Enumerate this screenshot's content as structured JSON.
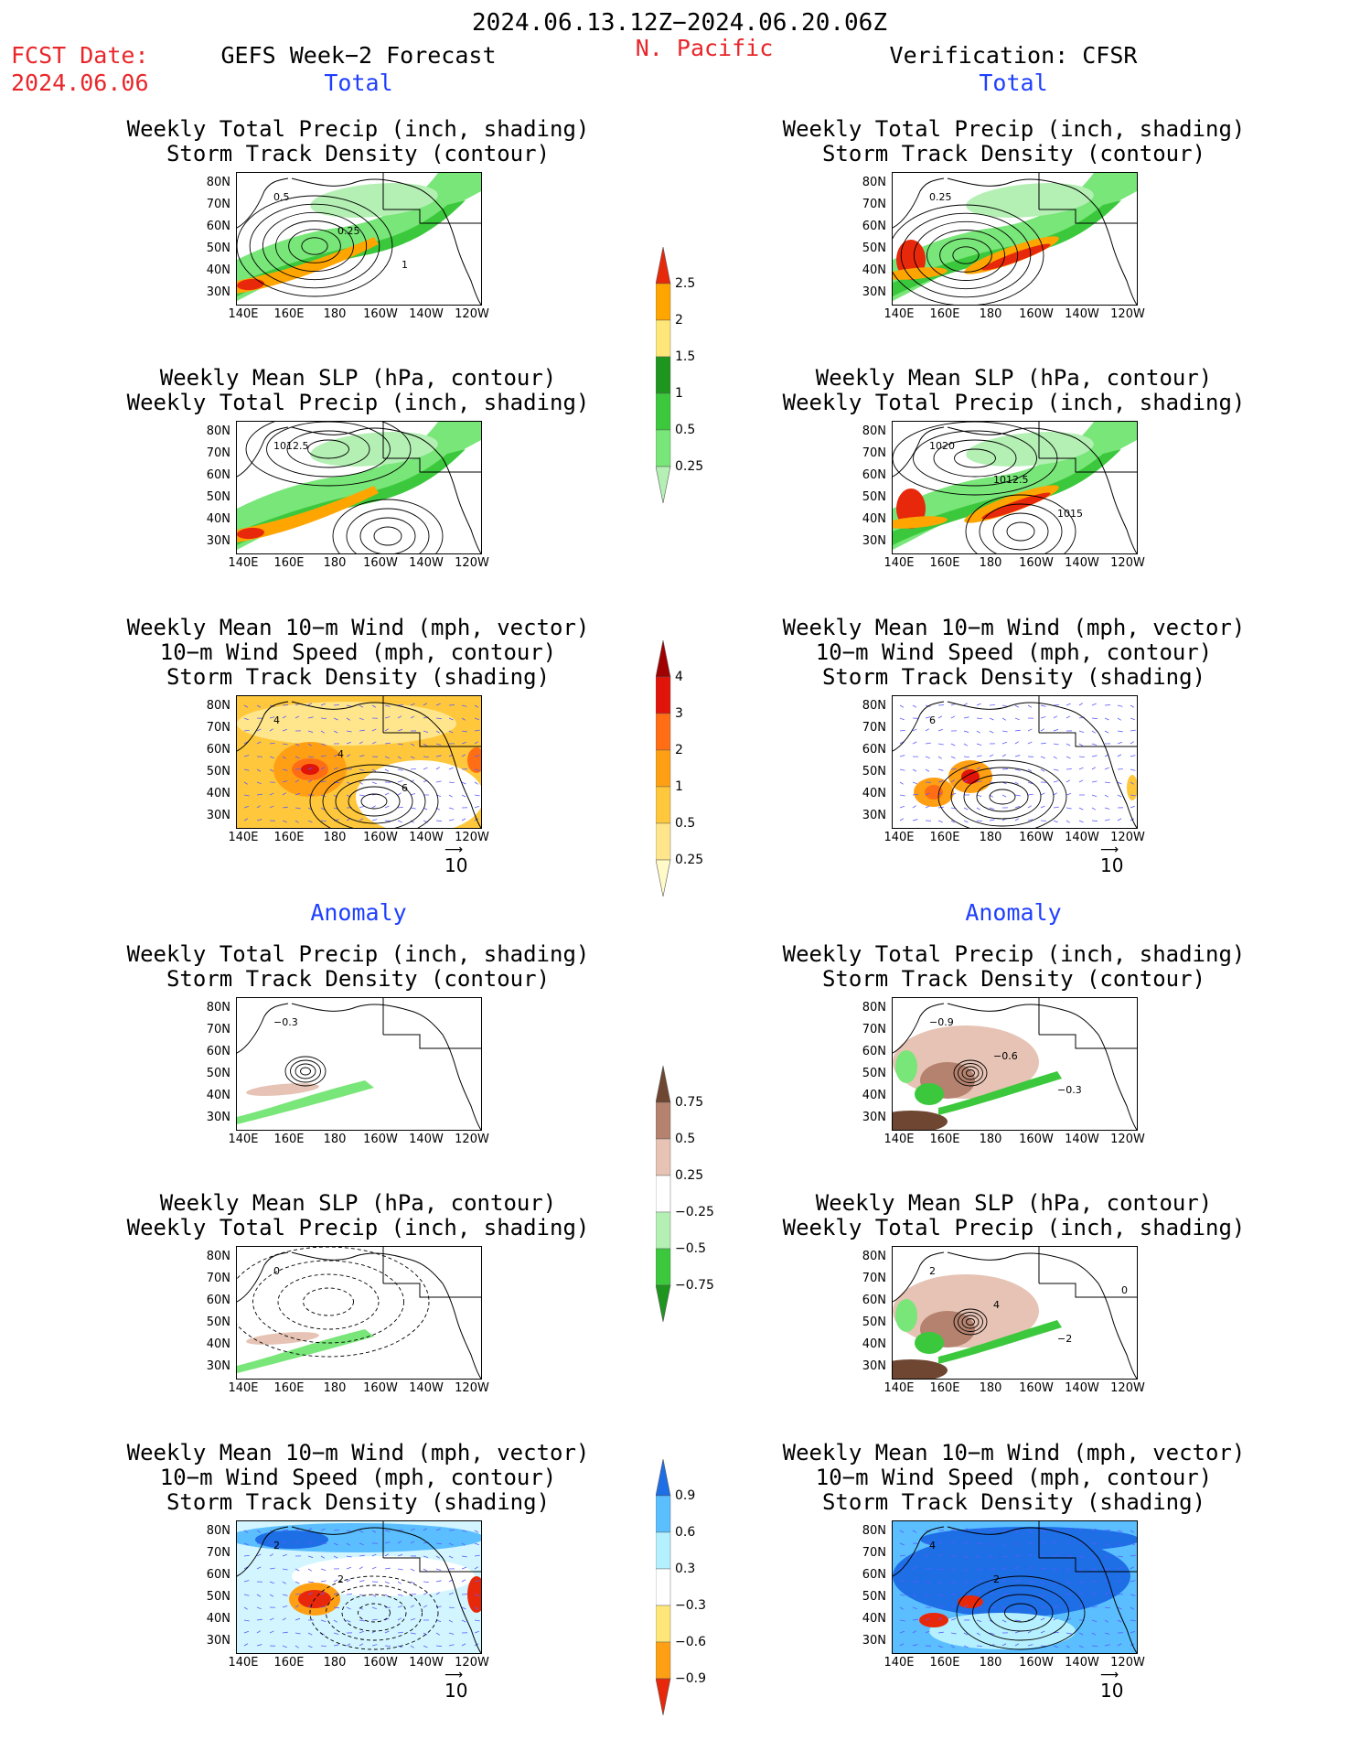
{
  "header": {
    "date_range": "2024.06.13.12Z−2024.06.20.06Z",
    "fcst_label": "FCST Date:",
    "fcst_date": "2024.06.06",
    "left_title": "GEFS Week−2 Forecast",
    "region": "N. Pacific",
    "right_title": "Verification: CFSR"
  },
  "sections": {
    "total": "Total",
    "anomaly": "Anomaly"
  },
  "panel_titles": {
    "precip_storm": [
      "Weekly Total Precip (inch, shading)",
      "Storm Track Density (contour)"
    ],
    "slp_precip": [
      "Weekly Mean SLP (hPa, contour)",
      "Weekly Total Precip (inch, shading)"
    ],
    "wind_storm": [
      "Weekly Mean 10−m Wind (mph, vector)",
      "10−m Wind Speed (mph, contour)",
      "Storm Track Density (shading)"
    ]
  },
  "axes": {
    "lat_ticks": [
      "80N",
      "70N",
      "60N",
      "50N",
      "40N",
      "30N"
    ],
    "lon_ticks": [
      "140E",
      "160E",
      "180",
      "160W",
      "140W",
      "120W"
    ]
  },
  "vector_ref": "10",
  "colorbars": {
    "precip_total": {
      "labels": [
        "0.25",
        "0.5",
        "1",
        "1.5",
        "2",
        "2.5"
      ],
      "colors": [
        "#b4f0b4",
        "#78e678",
        "#3cc83c",
        "#1e961e",
        "#ffe678",
        "#ffa500",
        "#e8280a"
      ]
    },
    "storm_total": {
      "labels": [
        "0.25",
        "0.5",
        "1",
        "2",
        "3",
        "4"
      ],
      "colors": [
        "#fffac8",
        "#ffe68c",
        "#ffc83c",
        "#ffa014",
        "#ff6e14",
        "#e1140a",
        "#a00000"
      ]
    },
    "precip_anom": {
      "labels": [
        "0.75",
        "0.5",
        "0.25",
        "−0.25",
        "−0.5",
        "−0.75"
      ],
      "colors": [
        "#1e961e",
        "#3cc83c",
        "#b4f0b4",
        "#ffffff",
        "#e6c3b4",
        "#b4826e",
        "#6e4632"
      ]
    },
    "storm_anom": {
      "labels": [
        "0.9",
        "0.6",
        "0.3",
        "−0.3",
        "−0.6",
        "−0.9"
      ],
      "colors": [
        "#e8280a",
        "#ffa014",
        "#ffe678",
        "#ffffff",
        "#b4f0ff",
        "#5abeff",
        "#1e6ee6"
      ]
    }
  },
  "map_labels": {
    "fc_tot_precip": [
      "0.5",
      "0.25",
      "1"
    ],
    "ve_tot_precip": [
      "0.25"
    ],
    "fc_tot_slp": [
      "1012.5"
    ],
    "ve_tot_slp": [
      "1020",
      "1012.5",
      "1015"
    ],
    "fc_tot_wind": [
      "4",
      "4",
      "6"
    ],
    "ve_tot_wind": [
      "6"
    ],
    "fc_anom_precip": [
      "−0.3"
    ],
    "ve_anom_precip": [
      "−0.9",
      "−0.6",
      "−0.3"
    ],
    "fc_anom_slp": [
      "0"
    ],
    "ve_anom_slp": [
      "2",
      "4",
      "−2",
      "0"
    ],
    "fc_anom_wind": [
      "2",
      "2"
    ],
    "ve_anom_wind": [
      "4",
      "2"
    ]
  }
}
